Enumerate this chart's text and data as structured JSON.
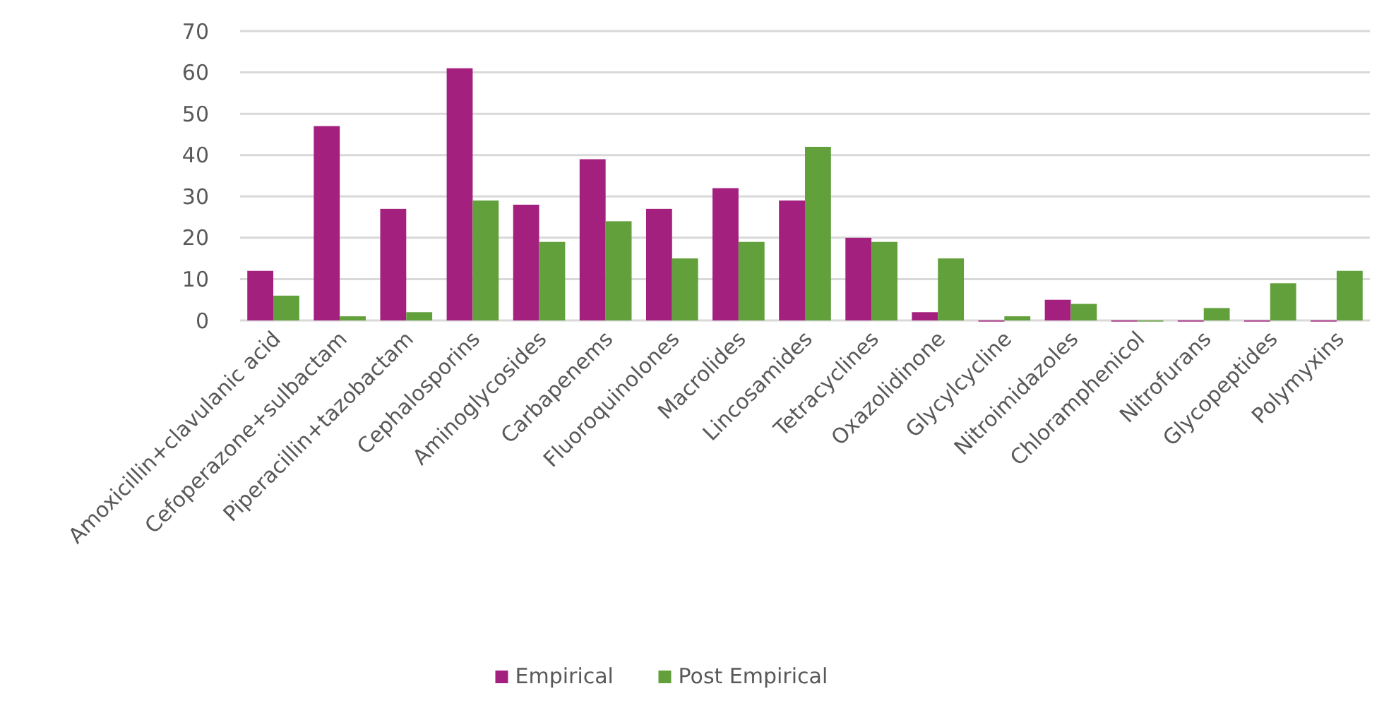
{
  "chart_data": {
    "type": "bar",
    "categories": [
      "Amoxicillin+clavulanic acid",
      "Cefoperazone+sulbactam",
      "Piperacillin+tazobactam",
      "Cephalosporins",
      "Aminoglycosides",
      "Carbapenems",
      "Fluoroquinolones",
      "Macrolides",
      "Lincosamides",
      "Tetracyclines",
      "Oxazolidinone",
      "Glycylcycline",
      "Nitroimidazoles",
      "Chloramphenicol",
      "Nitrofurans",
      "Glycopeptides",
      "Polymyxins"
    ],
    "series": [
      {
        "name": "Empirical",
        "color": "#a3207e",
        "values": [
          12,
          47,
          27,
          61,
          28,
          39,
          27,
          32,
          29,
          20,
          2,
          0,
          5,
          0,
          0,
          0,
          0
        ]
      },
      {
        "name": "Post Empirical",
        "color": "#62a03c",
        "values": [
          6,
          1,
          2,
          29,
          19,
          24,
          15,
          19,
          42,
          19,
          15,
          1,
          4,
          0,
          3,
          9,
          12
        ]
      }
    ],
    "ylim": [
      0,
      70
    ],
    "yticks": [
      0,
      10,
      20,
      30,
      40,
      50,
      60,
      70
    ],
    "grid": "y",
    "legend": "bottom"
  }
}
